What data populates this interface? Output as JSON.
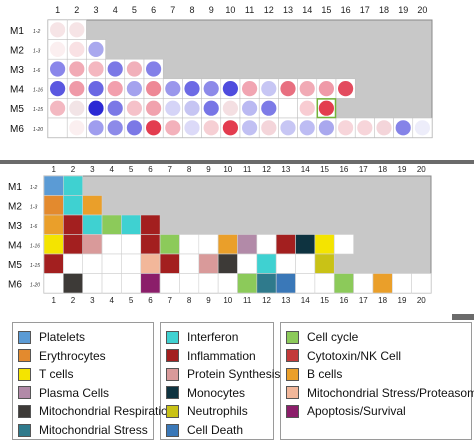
{
  "top_grid": {
    "columns": [
      "1",
      "2",
      "3",
      "4",
      "5",
      "6",
      "7",
      "8",
      "9",
      "10",
      "11",
      "12",
      "13",
      "14",
      "15",
      "16",
      "17",
      "18",
      "19",
      "20"
    ],
    "rows": [
      {
        "label": "M1",
        "sub": "1-2",
        "cells": [
          "#f6e4e6",
          "#f6e4e6"
        ]
      },
      {
        "label": "M2",
        "sub": "1-3",
        "cells": [
          "#fbeff0",
          "#f9e1e4",
          "#a9a8ee"
        ]
      },
      {
        "label": "M3",
        "sub": "1-6",
        "cells": [
          "#8a86ea",
          "#f1aab5",
          "#f4b7c0",
          "#7b78e6",
          "#f1b0ba",
          "#8380e8"
        ]
      },
      {
        "label": "M4",
        "sub": "1-16",
        "cells": [
          "#5a57e0",
          "#ef9aa8",
          "#6a67e3",
          "#f29fad",
          "#a4a2ee",
          "#ee8896",
          "#9a97ec",
          "#6d6ae5",
          "#8d8ae9",
          "#4f4cde",
          "#f1a5b2",
          "#c7c6f4",
          "#e86f80",
          "#f1aab5",
          "#ef9aa8",
          "#e34a5e"
        ]
      },
      {
        "label": "M5",
        "sub": "1-15",
        "cells": [
          "#f3b8c1",
          "#f2e4e6",
          "#2b28d4",
          "#7b78e6",
          "#f5c1c9",
          "#f1a2ae",
          "#d5d4f7",
          "#c6c5f3",
          "#7775e6",
          "#f4dfe2",
          "#bab9f2",
          "#7d7be7",
          "#ffffff",
          "#f8ccd2",
          "#e33c4f"
        ]
      },
      {
        "label": "M6",
        "sub": "1-20",
        "cells": [
          "#ffffff",
          "#fbeff0",
          "#9f9dee",
          "#8d8ae9",
          "#7b78e6",
          "#e33c4f",
          "#f3b1bb",
          "#dcdaf8",
          "#f6cfd4",
          "#e33c4f",
          "#c1c0f3",
          "#f4d5da",
          "#c7c6f4",
          "#bdbcf3",
          "#a9a8ee",
          "#f7d5da",
          "#f7d5da",
          "#f4d5da",
          "#8583e8",
          "#ededfa"
        ]
      }
    ],
    "highlight": {
      "row": 4,
      "col": 15
    }
  },
  "bottom_grid": {
    "columns": [
      "1",
      "2",
      "3",
      "4",
      "5",
      "6",
      "7",
      "8",
      "9",
      "10",
      "11",
      "12",
      "13",
      "14",
      "15",
      "16",
      "17",
      "18",
      "19",
      "20"
    ],
    "rows": [
      {
        "label": "M1",
        "sub": "1-2",
        "cells": [
          "platelets",
          "interferon"
        ]
      },
      {
        "label": "M2",
        "sub": "1-3",
        "cells": [
          "erythrocytes",
          "interferon_w",
          "bcells"
        ]
      },
      {
        "label": "M3",
        "sub": "1-6",
        "cells": [
          "bcells",
          "inflammation",
          "interferon",
          "cellcycle",
          "interferon_w",
          "inflammation"
        ]
      },
      {
        "label": "M4",
        "sub": "1-16",
        "cells": [
          "tcells",
          "inflammation",
          "protein",
          "white",
          "white",
          "inflammation",
          "cellcycle",
          "white",
          "white",
          "bcells",
          "plasma",
          "white",
          "inflammation",
          "monocytes",
          "tcells",
          "white"
        ]
      },
      {
        "label": "M5",
        "sub": "1-15",
        "cells": [
          "inflammation",
          "white",
          "white",
          "white",
          "white",
          "mito_stress_prot",
          "inflammation",
          "white",
          "protein",
          "mito_resp",
          "white",
          "interferon",
          "white",
          "white",
          "neutrophils"
        ]
      },
      {
        "label": "M6",
        "sub": "1-20",
        "cells": [
          "white",
          "mito_resp",
          "white",
          "white",
          "white",
          "apoptosis",
          "white",
          "white",
          "white",
          "white",
          "cellcycle",
          "mito_stress",
          "celldeath",
          "white",
          "white",
          "cellcycle",
          "white",
          "bcells",
          "white",
          "white"
        ]
      }
    ]
  },
  "legend": {
    "items": [
      {
        "key": "platelets",
        "label": "Platelets",
        "color": "#5b9bd5"
      },
      {
        "key": "erythrocytes",
        "label": "Erythrocytes",
        "color": "#e38a2e"
      },
      {
        "key": "tcells",
        "label": "T cells",
        "color": "#f4e400"
      },
      {
        "key": "plasma",
        "label": "Plasma Cells",
        "color": "#b28aa8"
      },
      {
        "key": "mito_resp",
        "label": "Mitochondrial Respiration",
        "color": "#3d3a37"
      },
      {
        "key": "mito_stress",
        "label": "Mitochondrial Stress",
        "color": "#2f7a8c"
      },
      {
        "key": "interferon",
        "label": "Interferon",
        "color": "#3fd1d1"
      },
      {
        "key": "inflammation",
        "label": "Inflammation",
        "color": "#a31f1f"
      },
      {
        "key": "protein",
        "label": "Protein Synthesis",
        "color": "#d99a9a"
      },
      {
        "key": "monocytes",
        "label": "Monocytes",
        "color": "#0e3340"
      },
      {
        "key": "neutrophils",
        "label": "Neutrophils",
        "color": "#c9c216"
      },
      {
        "key": "celldeath",
        "label": "Cell Death",
        "color": "#3a78b8"
      },
      {
        "key": "cellcycle",
        "label": "Cell cycle",
        "color": "#8cca5a"
      },
      {
        "key": "cytotoxin",
        "label": "Cytotoxin/NK Cell",
        "color": "#c33a3a"
      },
      {
        "key": "bcells",
        "label": "B cells",
        "color": "#ea9f2a"
      },
      {
        "key": "mito_stress_prot",
        "label": "Mitochondrial Stress/Proteasome",
        "color": "#f2b79a"
      },
      {
        "key": "apoptosis",
        "label": "Apoptosis/Survival",
        "color": "#8b1e6a"
      }
    ],
    "extra_colors": {
      "white": "#ffffff",
      "interferon_w": "#3fd1d1"
    }
  }
}
